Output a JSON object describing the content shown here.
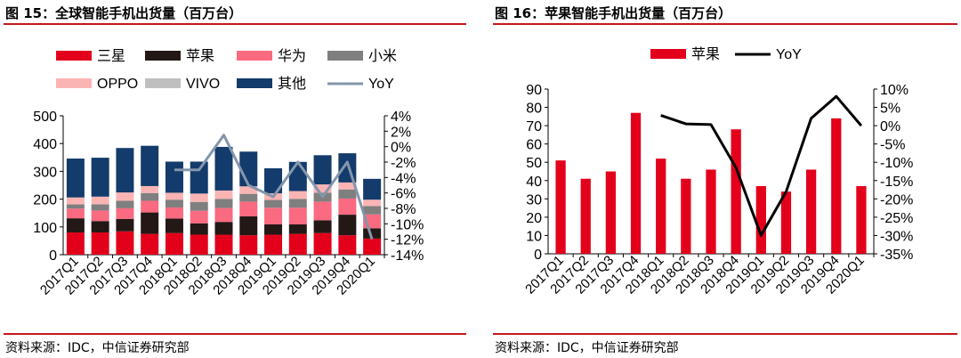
{
  "panels": [
    {
      "caption": "图 15：全球智能手机出货量（百万台）",
      "source": "资料来源：IDC，中信证券研究部"
    },
    {
      "caption": "图 16：苹果智能手机出货量（百万台）",
      "source": "资料来源：IDC，中信证券研究部"
    }
  ],
  "colors": {
    "samsung": "#e3001b",
    "apple": "#231815",
    "huawei": "#fa6a80",
    "xiaomi": "#7f7f7f",
    "oppo": "#fbb4b4",
    "vivo": "#bfbfbf",
    "other": "#133b6b",
    "yoy_left": "#8396ab",
    "yoy_right": "#000000",
    "apple_bar": "#e3001b",
    "rule": "#c4161c"
  },
  "chart_data": [
    {
      "type": "bar",
      "stacked": true,
      "categories": [
        "2017Q1",
        "2017Q2",
        "2017Q3",
        "2017Q4",
        "2018Q1",
        "2018Q2",
        "2018Q3",
        "2018Q4",
        "2019Q1",
        "2019Q2",
        "2019Q3",
        "2019Q4",
        "2020Q1"
      ],
      "series": [
        {
          "name": "三星",
          "color": "samsung",
          "values": [
            80,
            80,
            84,
            75,
            78,
            72,
            72,
            70,
            72,
            75,
            78,
            70,
            58
          ]
        },
        {
          "name": "苹果",
          "color": "apple",
          "values": [
            51,
            41,
            45,
            77,
            52,
            41,
            46,
            68,
            37,
            34,
            46,
            74,
            37
          ]
        },
        {
          "name": "华为",
          "color": "huawei",
          "values": [
            35,
            38,
            38,
            42,
            40,
            45,
            50,
            53,
            60,
            60,
            67,
            58,
            50
          ]
        },
        {
          "name": "小米",
          "color": "xiaomi",
          "values": [
            15,
            22,
            27,
            28,
            28,
            32,
            33,
            28,
            28,
            32,
            32,
            33,
            30
          ]
        },
        {
          "name": "OPPO",
          "color": "oppo",
          "values": [
            25,
            28,
            30,
            25,
            25,
            30,
            30,
            27,
            24,
            28,
            30,
            25,
            23
          ]
        },
        {
          "name": "VIVO",
          "color": "vivo",
          "values": [
            0,
            0,
            0,
            0,
            0,
            0,
            0,
            0,
            0,
            0,
            0,
            0,
            0
          ]
        },
        {
          "name": "其他",
          "color": "other",
          "values": [
            140,
            140,
            160,
            145,
            112,
            115,
            157,
            125,
            90,
            105,
            105,
            105,
            75
          ]
        }
      ],
      "line": {
        "name": "YoY",
        "color": "yoy_left",
        "axis": "right",
        "start_index": 4,
        "values": [
          -3,
          -3,
          1.5,
          -5,
          -6.5,
          -2,
          -6.5,
          -2,
          -12
        ]
      },
      "ylim": [
        0,
        500
      ],
      "yticks": [
        "0",
        "100",
        "200",
        "300",
        "400",
        "500"
      ],
      "y2lim": [
        -14,
        4
      ],
      "y2ticks": [
        "-14%",
        "-12%",
        "-10%",
        "-8%",
        "-6%",
        "-4%",
        "-2%",
        "0%",
        "2%",
        "4%"
      ],
      "legend_position": "top"
    },
    {
      "type": "bar",
      "categories": [
        "2017Q1",
        "2017Q2",
        "2017Q3",
        "2017Q4",
        "2018Q1",
        "2018Q2",
        "2018Q3",
        "2018Q4",
        "2019Q1",
        "2019Q2",
        "2019Q3",
        "2019Q4",
        "2020Q1"
      ],
      "series": [
        {
          "name": "苹果",
          "color": "apple_bar",
          "values": [
            51,
            41,
            45,
            77,
            52,
            41,
            46,
            68,
            37,
            34,
            46,
            74,
            37
          ]
        }
      ],
      "line": {
        "name": "YoY",
        "color": "yoy_right",
        "axis": "right",
        "start_index": 4,
        "values": [
          2.8,
          0.5,
          0.3,
          -11.5,
          -30,
          -18,
          2,
          8,
          0
        ]
      },
      "ylim": [
        0,
        90
      ],
      "yticks": [
        "0",
        "10",
        "20",
        "30",
        "40",
        "50",
        "60",
        "70",
        "80",
        "90"
      ],
      "y2lim": [
        -35,
        10
      ],
      "y2ticks": [
        "-35%",
        "-30%",
        "-25%",
        "-20%",
        "-15%",
        "-10%",
        "-5%",
        "0%",
        "5%",
        "10%"
      ],
      "legend_position": "top"
    }
  ]
}
